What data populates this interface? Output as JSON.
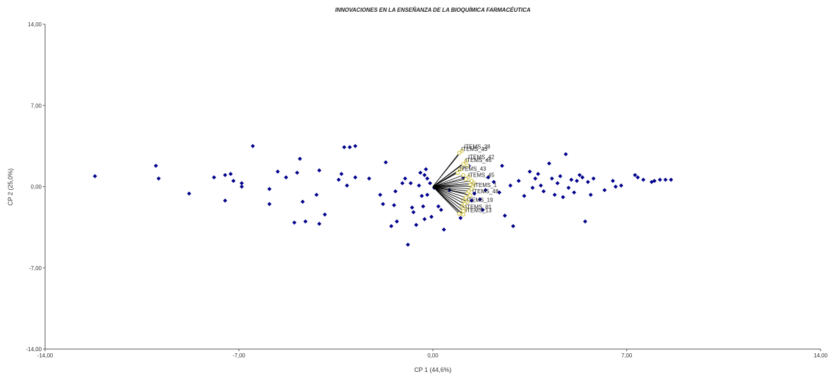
{
  "chart_data": {
    "type": "scatter",
    "subtype": "biplot",
    "title": "INNOVACIONES EN LA ENSEÑANZA DE LA BIOQUÍMICA FARMACÉUTICA",
    "xlabel": "CP 1 (44,6%)",
    "ylabel": "CP 2 (25,0%)",
    "xlim": [
      -14,
      14
    ],
    "ylim": [
      -14,
      14
    ],
    "xticks": [
      "-14,00",
      "-7,00",
      "0,00",
      "7,00",
      "14,00"
    ],
    "yticks": [
      "14,00",
      "7,00",
      "0,00",
      "-7,00",
      "-14,00"
    ],
    "grid": false,
    "legend": "none",
    "colors": {
      "points": "#00008B",
      "vectors": "#000000",
      "vector_tips": "#d4c84a"
    },
    "points": [
      [
        -12.2,
        0.9
      ],
      [
        -10,
        1.8
      ],
      [
        -9.9,
        0.7
      ],
      [
        -8.8,
        -0.6
      ],
      [
        -7.9,
        0.8
      ],
      [
        -7.5,
        1.0
      ],
      [
        -7.5,
        -1.2
      ],
      [
        -7.3,
        1.1
      ],
      [
        -7.2,
        0.5
      ],
      [
        -6.9,
        0.3
      ],
      [
        -6.9,
        0.0
      ],
      [
        -6.5,
        3.5
      ],
      [
        -5.9,
        -0.2
      ],
      [
        -5.9,
        -1.5
      ],
      [
        -5.6,
        1.3
      ],
      [
        -5.3,
        0.8
      ],
      [
        -5.0,
        -3.1
      ],
      [
        -4.9,
        1.2
      ],
      [
        -4.8,
        2.4
      ],
      [
        -4.7,
        -1.3
      ],
      [
        -4.6,
        -3.0
      ],
      [
        -4.2,
        -0.7
      ],
      [
        -4.1,
        1.4
      ],
      [
        -4.1,
        -3.2
      ],
      [
        -3.9,
        -2.4
      ],
      [
        -3.4,
        0.6
      ],
      [
        -3.3,
        1.1
      ],
      [
        -3.2,
        3.4
      ],
      [
        -3.1,
        0.1
      ],
      [
        -3.0,
        3.4
      ],
      [
        -2.8,
        3.5
      ],
      [
        -2.8,
        0.8
      ],
      [
        -2.3,
        0.7
      ],
      [
        -1.9,
        -0.7
      ],
      [
        -1.8,
        -1.5
      ],
      [
        -1.7,
        2.1
      ],
      [
        -1.5,
        -3.4
      ],
      [
        -1.4,
        -1.6
      ],
      [
        -1.35,
        -0.4
      ],
      [
        -1.3,
        -3.0
      ],
      [
        -1.1,
        0.3
      ],
      [
        -1.0,
        0.7
      ],
      [
        -0.9,
        -5.0
      ],
      [
        -0.8,
        0.3
      ],
      [
        -0.75,
        -1.8
      ],
      [
        -0.7,
        -2.2
      ],
      [
        -0.6,
        -3.3
      ],
      [
        -0.5,
        0.1
      ],
      [
        -0.45,
        1.2
      ],
      [
        -0.4,
        -0.8
      ],
      [
        -0.35,
        -1.7
      ],
      [
        -0.3,
        1.0
      ],
      [
        -0.3,
        -2.8
      ],
      [
        -0.25,
        1.5
      ],
      [
        -0.2,
        0.7
      ],
      [
        -0.2,
        -0.7
      ],
      [
        -0.1,
        0.3
      ],
      [
        -0.05,
        -2.6
      ],
      [
        0.05,
        -0.1
      ],
      [
        0.2,
        -1.7
      ],
      [
        0.3,
        -2.0
      ],
      [
        0.4,
        -3.7
      ],
      [
        0.6,
        -0.3
      ],
      [
        1.0,
        -2.7
      ],
      [
        1.1,
        0.8
      ],
      [
        1.3,
        1.8
      ],
      [
        1.4,
        -1.2
      ],
      [
        1.5,
        -0.6
      ],
      [
        1.7,
        -1.1
      ],
      [
        1.8,
        -2.0
      ],
      [
        1.9,
        -0.3
      ],
      [
        2.0,
        0.8
      ],
      [
        2.2,
        0.4
      ],
      [
        2.4,
        -0.5
      ],
      [
        2.5,
        1.8
      ],
      [
        2.6,
        -2.5
      ],
      [
        2.8,
        0.1
      ],
      [
        2.9,
        -3.4
      ],
      [
        3.1,
        0.5
      ],
      [
        3.3,
        -0.8
      ],
      [
        3.5,
        1.3
      ],
      [
        3.6,
        -0.1
      ],
      [
        3.7,
        0.7
      ],
      [
        3.8,
        1.1
      ],
      [
        3.9,
        0.1
      ],
      [
        4.0,
        -0.4
      ],
      [
        4.2,
        2.0
      ],
      [
        4.3,
        0.7
      ],
      [
        4.4,
        -0.7
      ],
      [
        4.5,
        0.3
      ],
      [
        4.6,
        0.9
      ],
      [
        4.7,
        -0.9
      ],
      [
        4.8,
        2.8
      ],
      [
        4.9,
        -0.1
      ],
      [
        5.0,
        0.6
      ],
      [
        5.1,
        -0.5
      ],
      [
        5.2,
        0.5
      ],
      [
        5.3,
        1.0
      ],
      [
        5.4,
        0.8
      ],
      [
        5.5,
        -3.0
      ],
      [
        5.6,
        0.4
      ],
      [
        5.7,
        -0.7
      ],
      [
        5.8,
        0.7
      ],
      [
        6.2,
        -0.3
      ],
      [
        6.5,
        0.5
      ],
      [
        6.6,
        0.0
      ],
      [
        6.8,
        0.1
      ],
      [
        7.3,
        1.0
      ],
      [
        7.4,
        0.8
      ],
      [
        7.6,
        0.6
      ],
      [
        7.9,
        0.4
      ],
      [
        8.0,
        0.5
      ],
      [
        8.2,
        0.6
      ],
      [
        8.4,
        0.6
      ],
      [
        8.6,
        0.6
      ]
    ],
    "vectors": [
      {
        "x": 1.05,
        "y": 3.1,
        "label": "ITEMS_28"
      },
      {
        "x": 0.95,
        "y": 2.9,
        "label": "ITEMS_33"
      },
      {
        "x": 1.2,
        "y": 2.2,
        "label": "ITEMS_42"
      },
      {
        "x": 1.1,
        "y": 1.95,
        "label": "ITEMS_46"
      },
      {
        "x": 1.25,
        "y": 1.8,
        "label": ""
      },
      {
        "x": 1.0,
        "y": 1.5,
        "label": ""
      },
      {
        "x": 0.9,
        "y": 1.2,
        "label": "ITEMS_43"
      },
      {
        "x": 1.1,
        "y": 1.0,
        "label": ""
      },
      {
        "x": 1.3,
        "y": 0.85,
        "label": ""
      },
      {
        "x": 1.2,
        "y": 0.65,
        "label": "ITEMS_45"
      },
      {
        "x": 1.4,
        "y": 0.5,
        "label": ""
      },
      {
        "x": 1.5,
        "y": 0.3,
        "label": ""
      },
      {
        "x": 1.35,
        "y": 0.15,
        "label": ""
      },
      {
        "x": 1.45,
        "y": 0.0,
        "label": ""
      },
      {
        "x": 1.4,
        "y": -0.2,
        "label": "ITEMS_1"
      },
      {
        "x": 1.3,
        "y": -0.4,
        "label": ""
      },
      {
        "x": 1.25,
        "y": -0.6,
        "label": ""
      },
      {
        "x": 1.35,
        "y": -0.75,
        "label": "ITEMS_48"
      },
      {
        "x": 1.2,
        "y": -0.95,
        "label": ""
      },
      {
        "x": 1.1,
        "y": -1.15,
        "label": ""
      },
      {
        "x": 1.25,
        "y": -1.3,
        "label": ""
      },
      {
        "x": 1.15,
        "y": -1.5,
        "label": "ITEMS_19"
      },
      {
        "x": 1.05,
        "y": -1.7,
        "label": ""
      },
      {
        "x": 1.2,
        "y": -1.9,
        "label": ""
      },
      {
        "x": 1.1,
        "y": -2.1,
        "label": "ITEMS_81"
      },
      {
        "x": 1.0,
        "y": -2.3,
        "label": ""
      },
      {
        "x": 1.1,
        "y": -2.4,
        "label": "ITEMS_13"
      },
      {
        "x": 0.95,
        "y": -2.35,
        "label": ""
      }
    ]
  }
}
